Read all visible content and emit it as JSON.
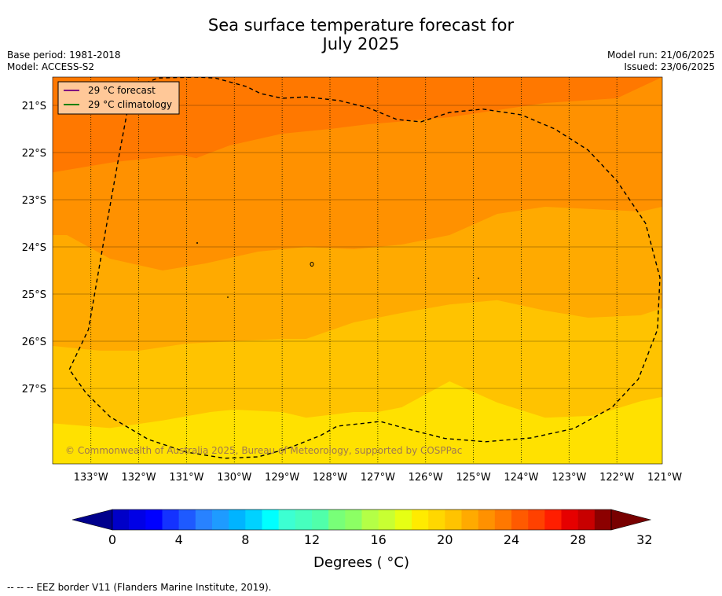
{
  "header": {
    "title_line1": "Sea surface temperature forecast for",
    "title_line2": "July 2025",
    "base_period": "Base period: 1981-2018",
    "model": "Model: ACCESS-S2",
    "model_run": "Model run: 21/06/2025",
    "issued": "Issued: 23/06/2025"
  },
  "legend": {
    "forecast_label": "29 °C  forecast",
    "climatology_label": "29 °C  climatology",
    "forecast_color": "#800080",
    "climatology_color": "#008000",
    "background": "#ffc898"
  },
  "copyright": "© Commonwealth of Australia 2025, Bureau of Meteorology, supported by COSPPac",
  "colorbar": {
    "title": "Degrees ( °C)",
    "tick_labels": [
      "0",
      "4",
      "8",
      "12",
      "16",
      "20",
      "24",
      "28",
      "32"
    ],
    "colors": [
      "#00008c",
      "#0000c8",
      "#0000e6",
      "#0000ff",
      "#1432ff",
      "#1e5aff",
      "#2882ff",
      "#1e9bff",
      "#00b4ff",
      "#00d2ff",
      "#00ffff",
      "#3cffd2",
      "#46ffbe",
      "#50ffaa",
      "#78ff78",
      "#8cff64",
      "#b4ff46",
      "#c8ff32",
      "#e6ff14",
      "#ffeb00",
      "#ffd700",
      "#ffc300",
      "#ffaa00",
      "#ff9100",
      "#ff7800",
      "#ff5a00",
      "#ff4100",
      "#ff1e00",
      "#e60000",
      "#c80000",
      "#8c0000",
      "#780000"
    ]
  },
  "footer": "--  --  -- EEZ border V11 (Flanders Marine Institute, 2019).",
  "chart_data": {
    "type": "heatmap",
    "title": "Sea surface temperature forecast for July 2025",
    "x_axis": {
      "unit": "longitude (°W)",
      "range": [
        133.8,
        121.05
      ],
      "tick_labels": [
        "133°W",
        "132°W",
        "131°W",
        "130°W",
        "129°W",
        "128°W",
        "127°W",
        "126°W",
        "125°W",
        "124°W",
        "123°W",
        "122°W",
        "121°W"
      ],
      "tick_values": [
        133,
        132,
        131,
        130,
        129,
        128,
        127,
        126,
        125,
        124,
        123,
        122,
        121
      ]
    },
    "y_axis": {
      "unit": "latitude (°S)",
      "range": [
        20.4,
        28.6
      ],
      "tick_labels": [
        "21°S",
        "22°S",
        "23°S",
        "24°S",
        "25°S",
        "26°S",
        "27°S"
      ],
      "tick_values": [
        21,
        22,
        23,
        24,
        25,
        26,
        27
      ]
    },
    "grid": "on (dotted meridians, solid parallels)",
    "legend_position": "top-left",
    "band_colors": {
      "27-28": "#ff7800",
      "26-27": "#ff9100",
      "25-26": "#ffaa00",
      "24-25": "#ffc300",
      "23-24": "#ffe100"
    },
    "band_boundaries": [
      {
        "between": "27-28 / 26-27",
        "lon": [
          133.8,
          132.5,
          131.1,
          130.8,
          130.1,
          129.0,
          128.0,
          127.2,
          126.6,
          125.5,
          124.5,
          123.5,
          122.0,
          121.05
        ],
        "lat": [
          22.42,
          22.2,
          22.05,
          22.12,
          21.85,
          21.6,
          21.5,
          21.4,
          21.35,
          21.25,
          21.1,
          20.95,
          20.85,
          20.4
        ]
      },
      {
        "between": "26-27 / 25-26",
        "lon": [
          133.8,
          133.5,
          132.6,
          131.5,
          130.6,
          129.5,
          128.5,
          127.5,
          126.5,
          125.5,
          124.5,
          123.5,
          122.5,
          121.5,
          121.05
        ],
        "lat": [
          23.75,
          23.75,
          24.25,
          24.5,
          24.35,
          24.1,
          24.0,
          24.05,
          23.95,
          23.75,
          23.3,
          23.15,
          23.2,
          23.25,
          23.15
        ]
      },
      {
        "between": "25-26 / 24-25",
        "lon": [
          133.8,
          132.8,
          132.0,
          131.0,
          130.0,
          129.0,
          128.5,
          127.5,
          126.5,
          125.5,
          124.5,
          123.5,
          122.6,
          121.5,
          121.05
        ],
        "lat": [
          26.1,
          26.2,
          26.2,
          26.05,
          26.0,
          25.95,
          25.95,
          25.6,
          25.4,
          25.22,
          25.13,
          25.35,
          25.5,
          25.45,
          25.3
        ]
      },
      {
        "between": "24-25 / 23-24",
        "lon": [
          133.8,
          132.6,
          131.5,
          130.5,
          130.0,
          129.0,
          128.5,
          127.5,
          127.0,
          126.5,
          125.5,
          124.5,
          123.5,
          122.5,
          121.5,
          121.05
        ],
        "lat": [
          27.74,
          27.84,
          27.68,
          27.5,
          27.45,
          27.5,
          27.62,
          27.5,
          27.5,
          27.4,
          26.85,
          27.3,
          27.62,
          27.58,
          27.27,
          27.18
        ]
      }
    ],
    "climatology_29C_contour": "not present in map area",
    "forecast_29C_contour": "not present in map area",
    "eez_border_points": [
      [
        133.45,
        26.6
      ],
      [
        133.05,
        25.75
      ],
      [
        132.7,
        23.7
      ],
      [
        132.4,
        22.0
      ],
      [
        132.15,
        20.65
      ],
      [
        131.6,
        20.42
      ],
      [
        130.8,
        20.4
      ],
      [
        130.4,
        20.42
      ],
      [
        129.75,
        20.6
      ],
      [
        129.45,
        20.75
      ],
      [
        129.0,
        20.85
      ],
      [
        128.5,
        20.82
      ],
      [
        127.8,
        20.9
      ],
      [
        127.2,
        21.05
      ],
      [
        126.6,
        21.3
      ],
      [
        126.1,
        21.35
      ],
      [
        125.5,
        21.15
      ],
      [
        124.8,
        21.08
      ],
      [
        124.0,
        21.2
      ],
      [
        123.3,
        21.5
      ],
      [
        122.6,
        21.95
      ],
      [
        122.0,
        22.6
      ],
      [
        121.4,
        23.5
      ],
      [
        121.1,
        24.65
      ],
      [
        121.15,
        25.75
      ],
      [
        121.55,
        26.8
      ],
      [
        122.1,
        27.4
      ],
      [
        122.9,
        27.85
      ],
      [
        123.8,
        28.05
      ],
      [
        124.75,
        28.13
      ],
      [
        125.6,
        28.06
      ],
      [
        126.3,
        27.88
      ],
      [
        126.95,
        27.7
      ],
      [
        127.3,
        27.74
      ],
      [
        127.85,
        27.8
      ],
      [
        128.2,
        28.0
      ],
      [
        128.9,
        28.28
      ],
      [
        129.5,
        28.45
      ],
      [
        130.2,
        28.48
      ],
      [
        131.0,
        28.35
      ],
      [
        131.8,
        28.08
      ],
      [
        132.6,
        27.6
      ],
      [
        133.1,
        27.1
      ],
      [
        133.45,
        26.6
      ]
    ]
  }
}
